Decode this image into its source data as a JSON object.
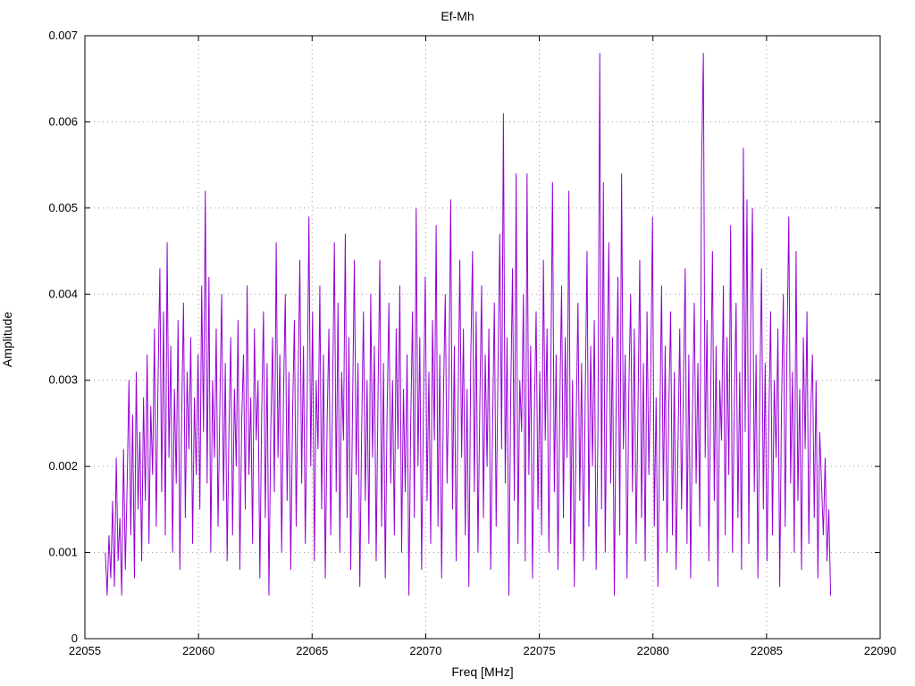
{
  "title": "Ef-Mh",
  "chart_data": {
    "type": "line",
    "title": "Ef-Mh",
    "xlabel": "Freq [MHz]",
    "ylabel": "Amplitude",
    "xlim": [
      22055,
      22090
    ],
    "ylim": [
      0,
      0.007
    ],
    "x_ticks": [
      22055,
      22060,
      22065,
      22070,
      22075,
      22080,
      22085,
      22090
    ],
    "y_ticks": [
      0,
      0.001,
      0.002,
      0.003,
      0.004,
      0.005,
      0.006,
      0.007
    ],
    "grid": true,
    "legend_position": "none",
    "line_color": "#9400d3",
    "x_start": 22055.9,
    "x_step": 0.08,
    "y": [
      0.001,
      0.0005,
      0.0012,
      0.0007,
      0.0016,
      0.0006,
      0.0021,
      0.0009,
      0.0014,
      0.0005,
      0.0022,
      0.0008,
      0.0018,
      0.003,
      0.0012,
      0.0026,
      0.0007,
      0.0031,
      0.0015,
      0.0024,
      0.0009,
      0.0028,
      0.0016,
      0.0033,
      0.0011,
      0.0027,
      0.0019,
      0.0036,
      0.0013,
      0.003,
      0.0043,
      0.0017,
      0.0038,
      0.0012,
      0.0046,
      0.0021,
      0.0034,
      0.001,
      0.0029,
      0.0018,
      0.0037,
      0.0008,
      0.0026,
      0.0039,
      0.0014,
      0.0031,
      0.0022,
      0.0035,
      0.0011,
      0.0028,
      0.0019,
      0.0033,
      0.0015,
      0.0041,
      0.0024,
      0.0052,
      0.0018,
      0.0042,
      0.001,
      0.003,
      0.0021,
      0.0036,
      0.0013,
      0.0027,
      0.004,
      0.0016,
      0.0032,
      0.0009,
      0.0024,
      0.0035,
      0.0012,
      0.0029,
      0.002,
      0.0037,
      0.0008,
      0.0025,
      0.0033,
      0.0015,
      0.0041,
      0.0019,
      0.0028,
      0.0011,
      0.0036,
      0.0023,
      0.003,
      0.0007,
      0.0026,
      0.0038,
      0.0014,
      0.0032,
      0.0005,
      0.0024,
      0.0035,
      0.0017,
      0.0046,
      0.0021,
      0.0033,
      0.001,
      0.0028,
      0.004,
      0.0016,
      0.0031,
      0.0008,
      0.0026,
      0.0037,
      0.0013,
      0.0029,
      0.0044,
      0.0018,
      0.0034,
      0.0011,
      0.0027,
      0.0049,
      0.002,
      0.0038,
      0.0009,
      0.003,
      0.0022,
      0.0041,
      0.0015,
      0.0033,
      0.0007,
      0.0025,
      0.0036,
      0.0012,
      0.0028,
      0.0046,
      0.0017,
      0.0039,
      0.001,
      0.0031,
      0.0023,
      0.0047,
      0.0014,
      0.0035,
      0.0008,
      0.0027,
      0.0044,
      0.0019,
      0.0032,
      0.0006,
      0.0024,
      0.0038,
      0.0016,
      0.003,
      0.0011,
      0.004,
      0.0021,
      0.0034,
      0.0009,
      0.0028,
      0.0044,
      0.0013,
      0.0032,
      0.0007,
      0.0026,
      0.0039,
      0.0018,
      0.003,
      0.0012,
      0.0036,
      0.0022,
      0.0041,
      0.001,
      0.0029,
      0.0017,
      0.0033,
      0.0005,
      0.0025,
      0.0038,
      0.0014,
      0.005,
      0.002,
      0.0035,
      0.0008,
      0.0027,
      0.0042,
      0.0016,
      0.0031,
      0.0011,
      0.0037,
      0.0023,
      0.0048,
      0.0013,
      0.0033,
      0.0007,
      0.0028,
      0.004,
      0.0018,
      0.003,
      0.0051,
      0.0015,
      0.0034,
      0.0009,
      0.0026,
      0.0044,
      0.0021,
      0.0036,
      0.0012,
      0.0029,
      0.0006,
      0.0032,
      0.0045,
      0.0017,
      0.0038,
      0.001,
      0.0027,
      0.0041,
      0.0014,
      0.0033,
      0.002,
      0.0036,
      0.0008,
      0.0024,
      0.0039,
      0.0013,
      0.0031,
      0.0047,
      0.0022,
      0.0061,
      0.0018,
      0.0035,
      0.0005,
      0.0028,
      0.0043,
      0.0016,
      0.0054,
      0.0011,
      0.003,
      0.0024,
      0.004,
      0.0009,
      0.0054,
      0.0019,
      0.0034,
      0.0007,
      0.0026,
      0.0038,
      0.0015,
      0.0031,
      0.0012,
      0.0044,
      0.0023,
      0.0036,
      0.001,
      0.0029,
      0.0053,
      0.0017,
      0.0033,
      0.0008,
      0.0027,
      0.0041,
      0.0014,
      0.0035,
      0.0021,
      0.0052,
      0.0011,
      0.003,
      0.0006,
      0.0025,
      0.0039,
      0.0016,
      0.0032,
      0.0009,
      0.0028,
      0.0045,
      0.0013,
      0.0034,
      0.002,
      0.0037,
      0.0008,
      0.0024,
      0.0068,
      0.0015,
      0.0053,
      0.001,
      0.0031,
      0.0046,
      0.0018,
      0.0035,
      0.0005,
      0.0027,
      0.0042,
      0.0012,
      0.0054,
      0.0022,
      0.0033,
      0.0007,
      0.0029,
      0.004,
      0.0017,
      0.0036,
      0.0011,
      0.0026,
      0.0044,
      0.0014,
      0.0032,
      0.0009,
      0.0038,
      0.0019,
      0.003,
      0.0049,
      0.0013,
      0.0028,
      0.0006,
      0.0024,
      0.0041,
      0.0016,
      0.0034,
      0.001,
      0.0027,
      0.0038,
      0.0012,
      0.0031,
      0.0008,
      0.0022,
      0.0036,
      0.0015,
      0.0029,
      0.0043,
      0.0011,
      0.0033,
      0.0007,
      0.0026,
      0.0039,
      0.0018,
      0.0032,
      0.0013,
      0.0055,
      0.0068,
      0.0021,
      0.0037,
      0.0009,
      0.0028,
      0.0045,
      0.0016,
      0.0034,
      0.0006,
      0.003,
      0.0023,
      0.0041,
      0.0012,
      0.0035,
      0.0019,
      0.0048,
      0.001,
      0.0027,
      0.0039,
      0.0014,
      0.0031,
      0.0008,
      0.0057,
      0.0024,
      0.0051,
      0.0011,
      0.0036,
      0.005,
      0.0017,
      0.0033,
      0.0007,
      0.0028,
      0.0043,
      0.0015,
      0.0032,
      0.0009,
      0.0025,
      0.0038,
      0.0012,
      0.003,
      0.0021,
      0.0036,
      0.0006,
      0.0027,
      0.004,
      0.0013,
      0.0034,
      0.0049,
      0.0018,
      0.0031,
      0.001,
      0.0045,
      0.0016,
      0.0029,
      0.0008,
      0.0035,
      0.0022,
      0.0038,
      0.0011,
      0.0026,
      0.0033,
      0.0014,
      0.003,
      0.0007,
      0.0024,
      0.0018,
      0.0012,
      0.0021,
      0.0009,
      0.0015,
      0.0005
    ]
  }
}
